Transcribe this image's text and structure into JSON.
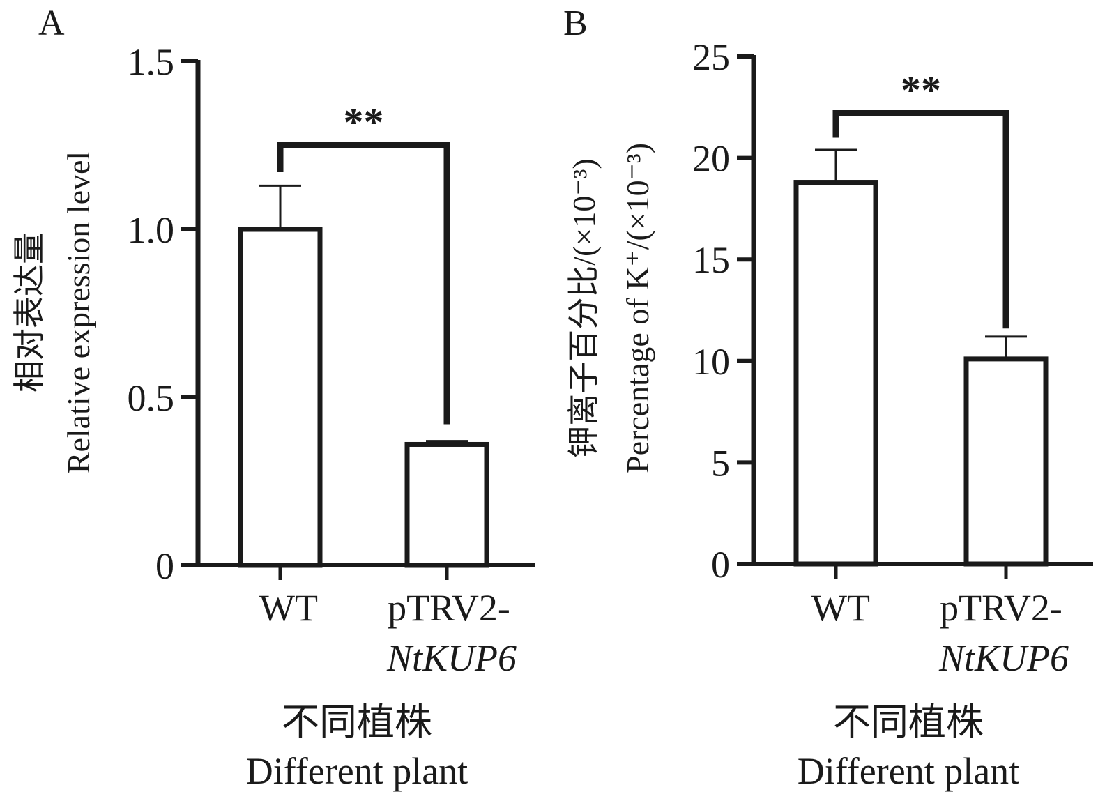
{
  "figure": {
    "background": "#ffffff",
    "ink_color": "#1a1a1a"
  },
  "chart_data": [
    {
      "type": "bar",
      "panel_label": "A",
      "categories": [
        "WT",
        "pTRV2-NtKUP6"
      ],
      "category_lines": [
        {
          "text": "WT",
          "italic": ""
        },
        {
          "text": "pTRV2-",
          "italic": "NtKUP6"
        }
      ],
      "values": [
        1.0,
        0.36
      ],
      "errors": [
        0.13,
        0.01
      ],
      "ylim": [
        0,
        1.5
      ],
      "yticks": [
        0,
        0.5,
        1.0,
        1.5
      ],
      "ytick_labels": [
        "0",
        "0.5",
        "1.0",
        "1.5"
      ],
      "ylabel_cn": "相对表达量",
      "ylabel_en": "Relative expression level",
      "ylabel_en_suffix": "",
      "xlabel_cn": "不同植株",
      "xlabel_en": "Different plant",
      "significance": {
        "label": "**",
        "bracket_level": 1.25,
        "left_end": 1.17,
        "right_end": 0.42
      }
    },
    {
      "type": "bar",
      "panel_label": "B",
      "categories": [
        "WT",
        "pTRV2-NtKUP6"
      ],
      "category_lines": [
        {
          "text": "WT",
          "italic": ""
        },
        {
          "text": "pTRV2-",
          "italic": "NtKUP6"
        }
      ],
      "values": [
        18.8,
        10.1
      ],
      "errors": [
        1.6,
        1.1
      ],
      "ylim": [
        0,
        25
      ],
      "yticks": [
        0,
        5,
        10,
        15,
        20,
        25
      ],
      "ytick_labels": [
        "0",
        "5",
        "10",
        "15",
        "20",
        "25"
      ],
      "ylabel_cn": "钾离子百分比/(×10⁻³)",
      "ylabel_en": "Percentage of K⁺/(×10⁻³)",
      "ylabel_en_suffix": "",
      "xlabel_cn": "不同植株",
      "xlabel_en": "Different plant",
      "significance": {
        "label": "**",
        "bracket_level": 22.2,
        "left_end": 21.0,
        "right_end": 11.6
      }
    }
  ]
}
